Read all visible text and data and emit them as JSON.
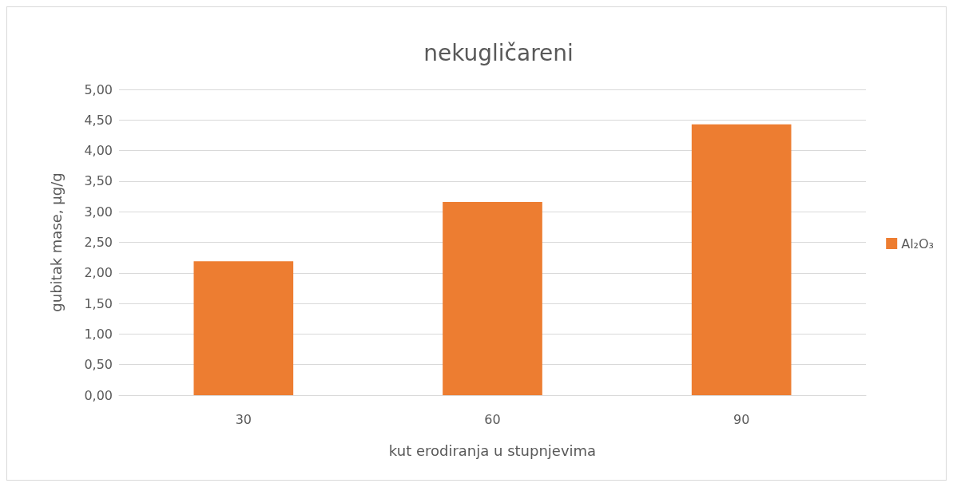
{
  "chart_data": {
    "type": "bar",
    "title": "nekugličareni",
    "xlabel": "kut erodiranja u stupnjevima",
    "ylabel": "gubitak mase, µg/g",
    "categories": [
      "30",
      "60",
      "90"
    ],
    "series": [
      {
        "name": "Al₂O₃",
        "color": "#ed7d31",
        "values": [
          2.19,
          3.16,
          4.43
        ]
      }
    ],
    "ylim": [
      0,
      5
    ],
    "yticks": [
      {
        "value": 0,
        "label": "0,00"
      },
      {
        "value": 0.5,
        "label": "0,50"
      },
      {
        "value": 1,
        "label": "1,00"
      },
      {
        "value": 1.5,
        "label": "1,50"
      },
      {
        "value": 2,
        "label": "2,00"
      },
      {
        "value": 2.5,
        "label": "2,50"
      },
      {
        "value": 3,
        "label": "3,00"
      },
      {
        "value": 3.5,
        "label": "3,50"
      },
      {
        "value": 4,
        "label": "4,00"
      },
      {
        "value": 4.5,
        "label": "4,50"
      },
      {
        "value": 5,
        "label": "5,00"
      }
    ],
    "grid": "y",
    "legend": "right"
  }
}
